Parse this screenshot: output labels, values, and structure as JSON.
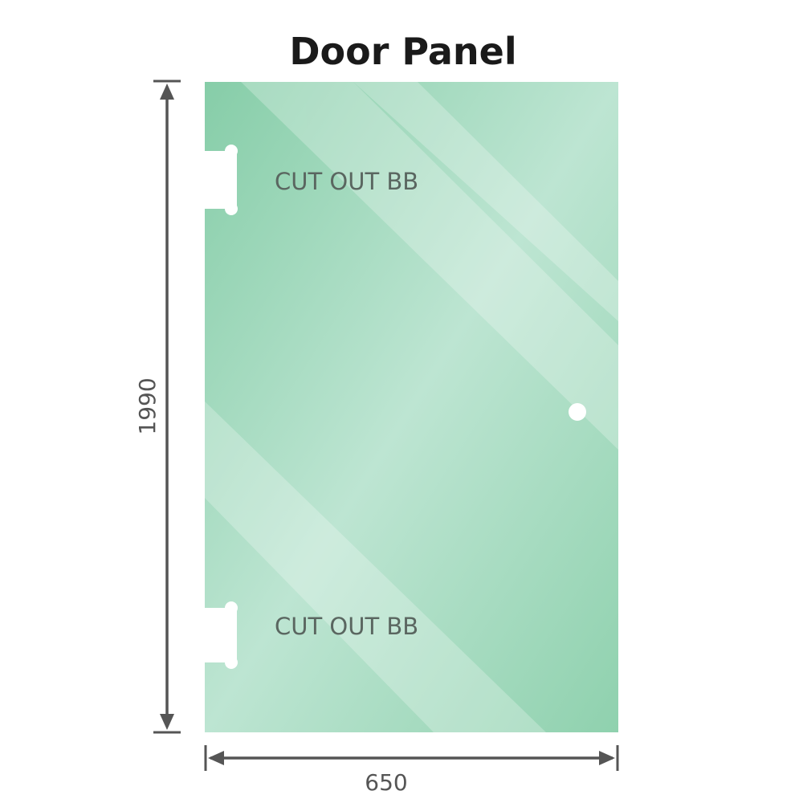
{
  "title": "Door Panel",
  "cutout_label": "CUT OUT BB",
  "cutouts": [
    {
      "label": "CUT OUT BB"
    },
    {
      "label": "CUT OUT BB"
    }
  ],
  "dimensions": {
    "height": "1990",
    "width": "650"
  },
  "colors": {
    "glass": "#8dd0ad",
    "glass_light": "#bfe6d3",
    "dimension_line": "#555555"
  }
}
